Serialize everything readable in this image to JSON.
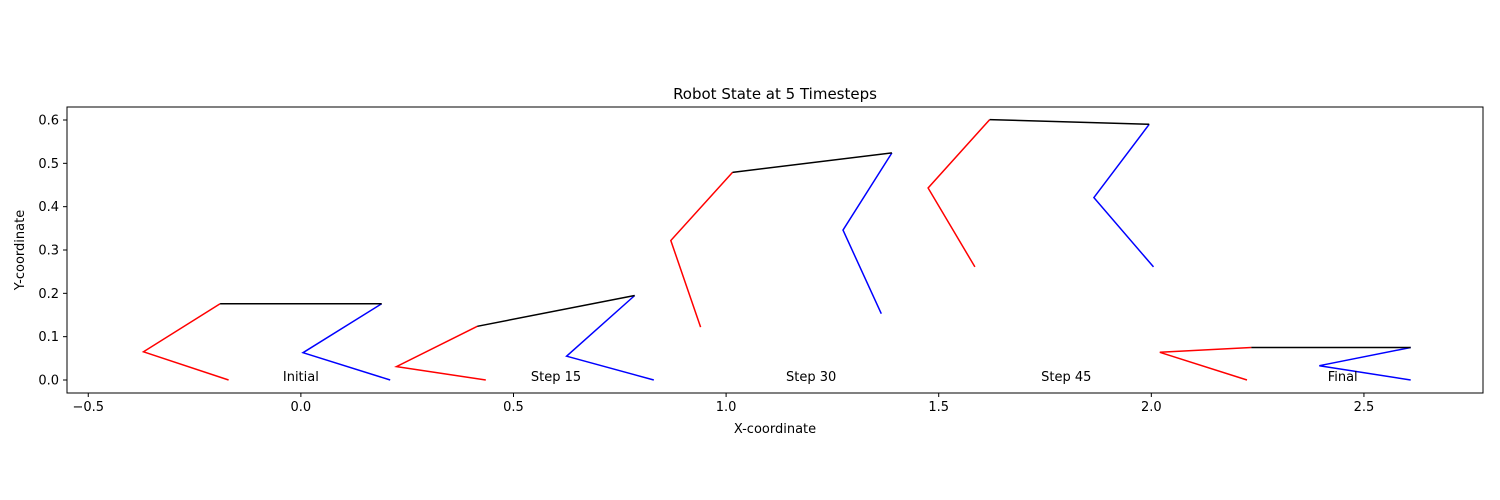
{
  "chart_data": {
    "type": "line",
    "title": "Robot State at 5 Timesteps",
    "xlabel": "X-coordinate",
    "ylabel": "Y-coordinate",
    "xlim": [
      -0.55,
      2.78
    ],
    "ylim": [
      -0.03,
      0.63
    ],
    "xticks": [
      -0.5,
      0.0,
      0.5,
      1.0,
      1.5,
      2.0,
      2.5
    ],
    "xtick_labels": [
      "−0.5",
      "0.0",
      "0.5",
      "1.0",
      "1.5",
      "2.0",
      "2.5"
    ],
    "yticks": [
      0.0,
      0.1,
      0.2,
      0.3,
      0.4,
      0.5,
      0.6
    ],
    "ytick_labels": [
      "0.0",
      "0.1",
      "0.2",
      "0.3",
      "0.4",
      "0.5",
      "0.6"
    ],
    "grid": false,
    "colors": {
      "left_leg": "#ff0000",
      "right_leg": "#0000ff",
      "body": "#000000"
    },
    "robots": [
      {
        "label": "Initial",
        "label_pos": [
          0.0,
          0.0
        ],
        "left_leg": [
          [
            -0.17,
            0.0
          ],
          [
            -0.37,
            0.065
          ],
          [
            -0.19,
            0.176
          ]
        ],
        "body": [
          [
            -0.19,
            0.176
          ],
          [
            0.19,
            0.176
          ]
        ],
        "right_leg": [
          [
            0.19,
            0.176
          ],
          [
            0.005,
            0.063
          ],
          [
            0.21,
            0.0
          ]
        ]
      },
      {
        "label": "Step 15",
        "label_pos": [
          0.6,
          0.0
        ],
        "left_leg": [
          [
            0.435,
            0.0
          ],
          [
            0.225,
            0.031
          ],
          [
            0.415,
            0.124
          ]
        ],
        "body": [
          [
            0.415,
            0.124
          ],
          [
            0.785,
            0.195
          ]
        ],
        "right_leg": [
          [
            0.785,
            0.195
          ],
          [
            0.625,
            0.055
          ],
          [
            0.83,
            0.0
          ]
        ]
      },
      {
        "label": "Step 30",
        "label_pos": [
          1.2,
          0.0
        ],
        "left_leg": [
          [
            0.94,
            0.122
          ],
          [
            0.87,
            0.322
          ],
          [
            1.015,
            0.479
          ]
        ],
        "body": [
          [
            1.015,
            0.479
          ],
          [
            1.39,
            0.524
          ]
        ],
        "right_leg": [
          [
            1.39,
            0.524
          ],
          [
            1.275,
            0.346
          ],
          [
            1.365,
            0.153
          ]
        ]
      },
      {
        "label": "Step 45",
        "label_pos": [
          1.8,
          0.0
        ],
        "left_leg": [
          [
            1.585,
            0.261
          ],
          [
            1.475,
            0.443
          ],
          [
            1.62,
            0.601
          ]
        ],
        "body": [
          [
            1.62,
            0.601
          ],
          [
            1.995,
            0.59
          ]
        ],
        "right_leg": [
          [
            1.995,
            0.59
          ],
          [
            1.865,
            0.421
          ],
          [
            2.005,
            0.261
          ]
        ]
      },
      {
        "label": "Final",
        "label_pos": [
          2.45,
          0.0
        ],
        "left_leg": [
          [
            2.225,
            0.0
          ],
          [
            2.02,
            0.064
          ],
          [
            2.235,
            0.075
          ]
        ],
        "body": [
          [
            2.235,
            0.075
          ],
          [
            2.61,
            0.075
          ]
        ],
        "right_leg": [
          [
            2.61,
            0.075
          ],
          [
            2.395,
            0.033
          ],
          [
            2.61,
            0.0
          ]
        ]
      }
    ]
  }
}
